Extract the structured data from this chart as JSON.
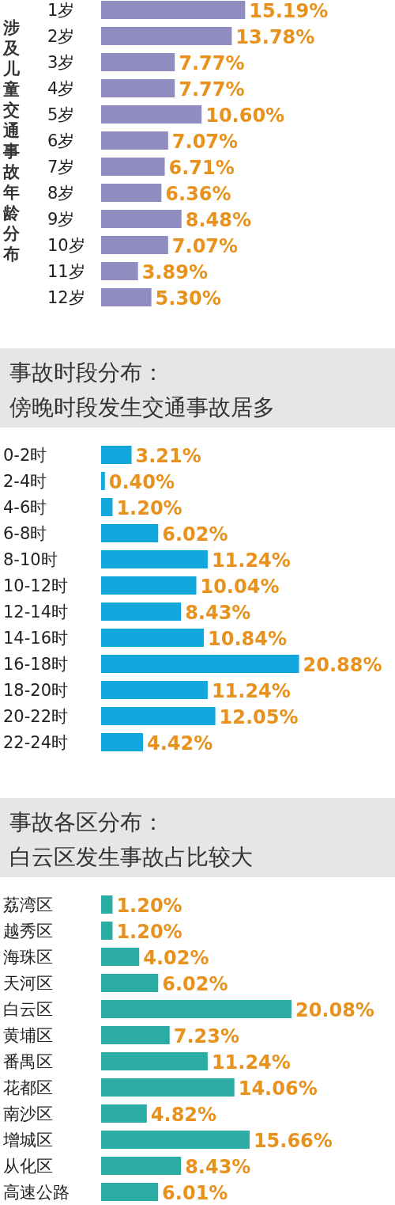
{
  "chart_data": [
    {
      "type": "bar",
      "orientation": "horizontal",
      "title": "涉及儿童交通事故年龄分布",
      "categories": [
        "1岁",
        "2岁",
        "3岁",
        "4岁",
        "5岁",
        "6岁",
        "7岁",
        "8岁",
        "9岁",
        "10岁",
        "11岁",
        "12岁"
      ],
      "values": [
        15.19,
        13.78,
        7.77,
        7.77,
        10.6,
        7.07,
        6.71,
        6.36,
        8.48,
        7.07,
        3.89,
        5.3
      ],
      "value_labels": [
        "15.19%",
        "13.78%",
        "7.77%",
        "7.77%",
        "10.60%",
        "7.07%",
        "6.71%",
        "6.36%",
        "8.48%",
        "7.07%",
        "3.89%",
        "5.30%"
      ],
      "color": "#8f8cc0"
    },
    {
      "type": "bar",
      "orientation": "horizontal",
      "title": "事故时段分布：",
      "subtitle": "傍晚时段发生交通事故居多",
      "categories": [
        "0-2时",
        "2-4时",
        "4-6时",
        "6-8时",
        "8-10时",
        "10-12时",
        "12-14时",
        "14-16时",
        "16-18时",
        "18-20时",
        "20-22时",
        "22-24时"
      ],
      "values": [
        3.21,
        0.4,
        1.2,
        6.02,
        11.24,
        10.04,
        8.43,
        10.84,
        20.88,
        11.24,
        12.05,
        4.42
      ],
      "value_labels": [
        "3.21%",
        "0.40%",
        "1.20%",
        "6.02%",
        "11.24%",
        "10.04%",
        "8.43%",
        "10.84%",
        "20.88%",
        "11.24%",
        "12.05%",
        "4.42%"
      ],
      "color": "#13a8dd"
    },
    {
      "type": "bar",
      "orientation": "horizontal",
      "title": "事故各区分布：",
      "subtitle": "白云区发生事故占比较大",
      "categories": [
        "荔湾区",
        "越秀区",
        "海珠区",
        "天河区",
        "白云区",
        "黄埔区",
        "番禺区",
        "花都区",
        "南沙区",
        "增城区",
        "从化区",
        "高速公路"
      ],
      "values": [
        1.2,
        1.2,
        4.02,
        6.02,
        20.08,
        7.23,
        11.24,
        14.06,
        4.82,
        15.66,
        8.43,
        6.01
      ],
      "value_labels": [
        "1.20%",
        "1.20%",
        "4.02%",
        "6.02%",
        "20.08%",
        "7.23%",
        "11.24%",
        "14.06%",
        "4.82%",
        "15.66%",
        "8.43%",
        "6.01%"
      ],
      "color": "#2bada5"
    }
  ]
}
